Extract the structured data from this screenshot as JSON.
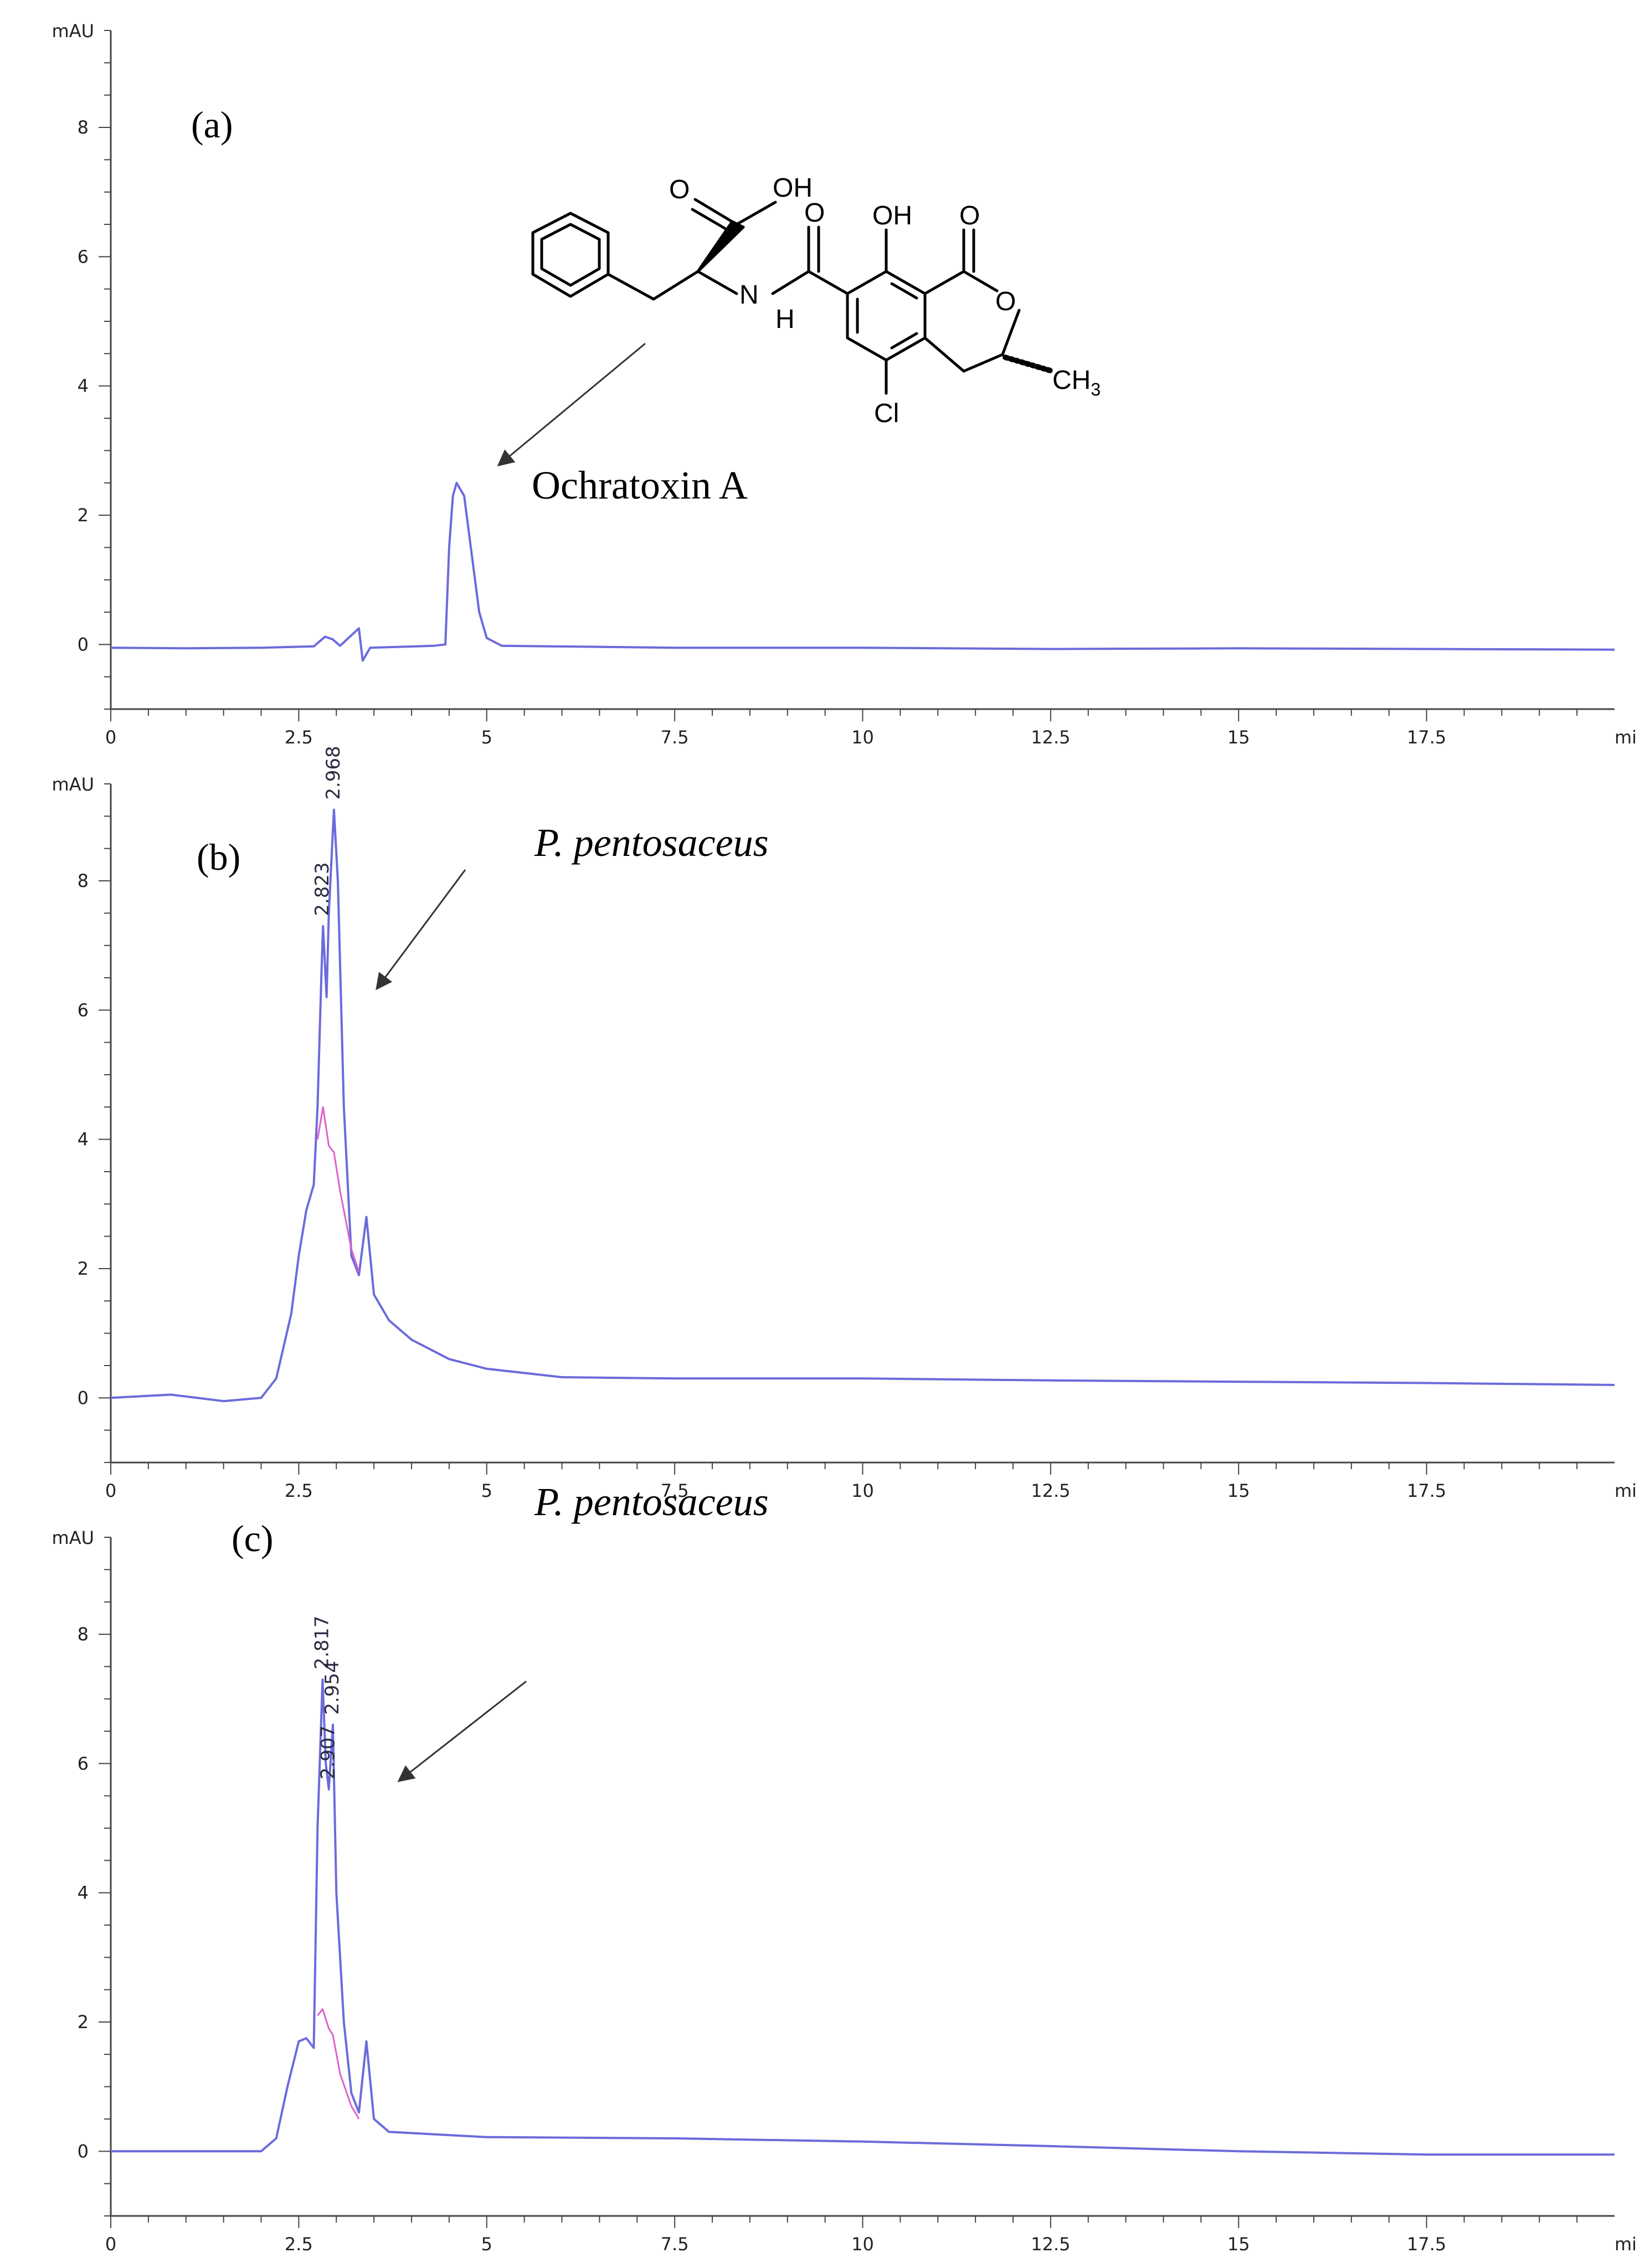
{
  "chart_data": [
    {
      "type": "line",
      "panel_label": "(a)",
      "y_unit_label": "mAU",
      "x_unit_label": "mi",
      "xlim": [
        0,
        20
      ],
      "ylim": [
        -1,
        9.5
      ],
      "x_ticks": [
        "0",
        "2.5",
        "5",
        "7.5",
        "10",
        "12.5",
        "15",
        "17.5"
      ],
      "y_ticks": [
        "0",
        "2",
        "4",
        "6",
        "8"
      ],
      "annotation": "Ochratoxin A",
      "peak_labels": [],
      "series": [
        {
          "color": "#6b6bdc",
          "points": [
            [
              0,
              -0.05
            ],
            [
              1.0,
              -0.06
            ],
            [
              2.0,
              -0.05
            ],
            [
              2.7,
              -0.03
            ],
            [
              2.85,
              0.12
            ],
            [
              2.95,
              0.08
            ],
            [
              3.05,
              -0.02
            ],
            [
              3.3,
              0.25
            ],
            [
              3.35,
              -0.25
            ],
            [
              3.45,
              -0.05
            ],
            [
              4.3,
              -0.02
            ],
            [
              4.45,
              0.0
            ],
            [
              4.5,
              1.5
            ],
            [
              4.55,
              2.3
            ],
            [
              4.6,
              2.5
            ],
            [
              4.7,
              2.3
            ],
            [
              4.8,
              1.4
            ],
            [
              4.9,
              0.5
            ],
            [
              5.0,
              0.1
            ],
            [
              5.2,
              -0.02
            ],
            [
              7.5,
              -0.05
            ],
            [
              10,
              -0.05
            ],
            [
              12.5,
              -0.07
            ],
            [
              15,
              -0.06
            ],
            [
              17.5,
              -0.07
            ],
            [
              20,
              -0.08
            ]
          ]
        }
      ]
    },
    {
      "type": "line",
      "panel_label": "(b)",
      "y_unit_label": "mAU",
      "x_unit_label": "mi",
      "xlim": [
        0,
        20
      ],
      "ylim": [
        -1,
        9.5
      ],
      "x_ticks": [
        "0",
        "2.5",
        "5",
        "7.5",
        "10",
        "12.5",
        "15",
        "17.5"
      ],
      "y_ticks": [
        "0",
        "2",
        "4",
        "6",
        "8"
      ],
      "annotation": "P. pentosaceus",
      "peak_labels": [
        {
          "x": 2.823,
          "y": 7.3,
          "text": "2.823"
        },
        {
          "x": 2.968,
          "y": 9.1,
          "text": "2.968"
        }
      ],
      "series": [
        {
          "color": "#6b6bdc",
          "points": [
            [
              0,
              0.0
            ],
            [
              0.8,
              0.05
            ],
            [
              1.5,
              -0.05
            ],
            [
              2.0,
              0.0
            ],
            [
              2.2,
              0.3
            ],
            [
              2.4,
              1.3
            ],
            [
              2.5,
              2.2
            ],
            [
              2.6,
              2.9
            ],
            [
              2.7,
              3.3
            ],
            [
              2.75,
              4.5
            ],
            [
              2.8,
              6.5
            ],
            [
              2.823,
              7.3
            ],
            [
              2.87,
              6.2
            ],
            [
              2.9,
              7.5
            ],
            [
              2.968,
              9.1
            ],
            [
              3.02,
              8.0
            ],
            [
              3.1,
              4.5
            ],
            [
              3.2,
              2.2
            ],
            [
              3.3,
              1.9
            ],
            [
              3.4,
              2.8
            ],
            [
              3.5,
              1.6
            ],
            [
              3.7,
              1.2
            ],
            [
              4.0,
              0.9
            ],
            [
              4.5,
              0.6
            ],
            [
              5.0,
              0.45
            ],
            [
              6.0,
              0.32
            ],
            [
              7.5,
              0.3
            ],
            [
              10,
              0.3
            ],
            [
              12.5,
              0.27
            ],
            [
              15,
              0.25
            ],
            [
              17.5,
              0.23
            ],
            [
              20,
              0.2
            ]
          ]
        },
        {
          "color": "#e060c8",
          "points": [
            [
              2.75,
              4.0
            ],
            [
              2.823,
              4.5
            ],
            [
              2.9,
              3.9
            ],
            [
              2.968,
              3.8
            ],
            [
              3.05,
              3.2
            ],
            [
              3.2,
              2.3
            ],
            [
              3.3,
              1.95
            ]
          ]
        }
      ]
    },
    {
      "type": "line",
      "panel_label": "(c)",
      "y_unit_label": "mAU",
      "x_unit_label": "mi",
      "xlim": [
        0,
        20
      ],
      "ylim": [
        -1,
        9.5
      ],
      "x_ticks": [
        "0",
        "2.5",
        "5",
        "7.5",
        "10",
        "12.5",
        "15",
        "17.5"
      ],
      "y_ticks": [
        "0",
        "2",
        "4",
        "6",
        "8"
      ],
      "annotation": "P. pentosaceus",
      "peak_labels": [
        {
          "x": 2.817,
          "y": 7.3,
          "text": "2.817"
        },
        {
          "x": 2.954,
          "y": 6.6,
          "text": "2.954"
        },
        {
          "x": 2.9,
          "y": 5.6,
          "text": "2.907"
        }
      ],
      "series": [
        {
          "color": "#6b6bdc",
          "points": [
            [
              0,
              0.0
            ],
            [
              1.0,
              0.0
            ],
            [
              2.0,
              0.0
            ],
            [
              2.2,
              0.2
            ],
            [
              2.35,
              1.0
            ],
            [
              2.5,
              1.7
            ],
            [
              2.6,
              1.75
            ],
            [
              2.7,
              1.6
            ],
            [
              2.75,
              5.0
            ],
            [
              2.817,
              7.3
            ],
            [
              2.86,
              6.0
            ],
            [
              2.9,
              5.6
            ],
            [
              2.954,
              6.6
            ],
            [
              3.0,
              4.0
            ],
            [
              3.1,
              2.0
            ],
            [
              3.2,
              0.9
            ],
            [
              3.3,
              0.6
            ],
            [
              3.4,
              1.7
            ],
            [
              3.5,
              0.5
            ],
            [
              3.7,
              0.3
            ],
            [
              5.0,
              0.22
            ],
            [
              7.5,
              0.2
            ],
            [
              10,
              0.15
            ],
            [
              12.5,
              0.08
            ],
            [
              15,
              0.0
            ],
            [
              17.5,
              -0.05
            ],
            [
              20,
              -0.05
            ]
          ]
        },
        {
          "color": "#e060c8",
          "points": [
            [
              2.75,
              2.1
            ],
            [
              2.817,
              2.2
            ],
            [
              2.9,
              1.9
            ],
            [
              2.954,
              1.8
            ],
            [
              3.05,
              1.2
            ],
            [
              3.2,
              0.7
            ],
            [
              3.3,
              0.5
            ]
          ]
        }
      ]
    }
  ],
  "structure": {
    "labels": {
      "carbonyl_o_left": "O",
      "oh_acid": "OH",
      "amide_o": "O",
      "oh_phenol": "OH",
      "lactone_o_top": "O",
      "ring_o": "O",
      "nh_n": "N",
      "nh_h": "H",
      "methyl": "CH",
      "methyl_sub": "3",
      "chlorine": "Cl"
    }
  }
}
